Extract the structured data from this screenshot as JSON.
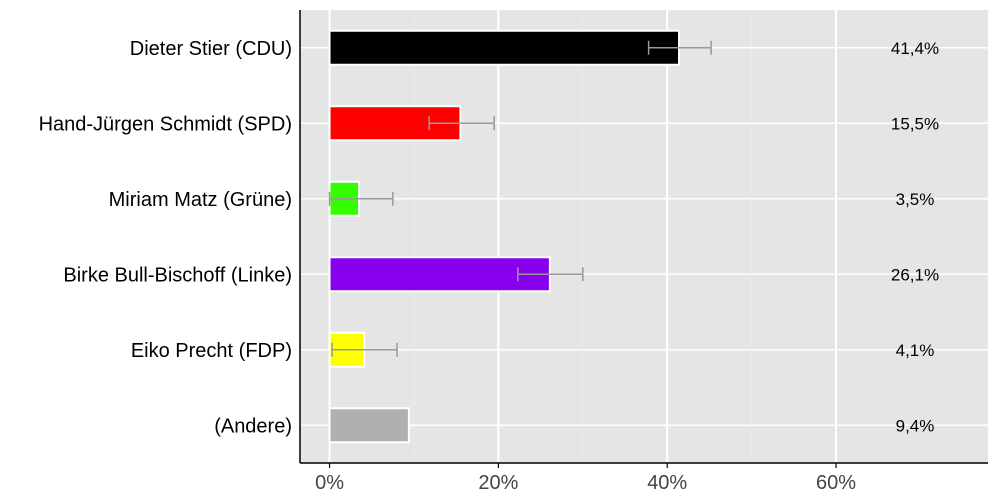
{
  "chart_data": {
    "type": "bar",
    "orientation": "horizontal",
    "categories": [
      "Dieter Stier (CDU)",
      "Hand-Jürgen Schmidt (SPD)",
      "Miriam Matz (Grüne)",
      "Birke Bull-Bischoff (Linke)",
      "Eiko Precht (FDP)",
      "(Andere)"
    ],
    "values": [
      41.4,
      15.5,
      3.5,
      26.1,
      4.1,
      9.4
    ],
    "value_labels": [
      "41,4%",
      "15,5%",
      "3,5%",
      "26,1%",
      "4,1%",
      "9,4%"
    ],
    "error_bars": [
      [
        37.8,
        45.2
      ],
      [
        11.8,
        19.5
      ],
      [
        0.0,
        7.5
      ],
      [
        22.3,
        30.0
      ],
      [
        0.3,
        8.0
      ],
      null
    ],
    "colors": [
      "#000000",
      "#ff0000",
      "#33ff00",
      "#8800ee",
      "#ffff00",
      "#b0b0b0"
    ],
    "xlim": [
      -3.5,
      78
    ],
    "ticks": [
      0,
      20,
      40,
      60
    ],
    "tick_labels": [
      "0%",
      "20%",
      "40%",
      "60%"
    ],
    "grid": true,
    "title": "",
    "xlabel": "",
    "ylabel": ""
  }
}
